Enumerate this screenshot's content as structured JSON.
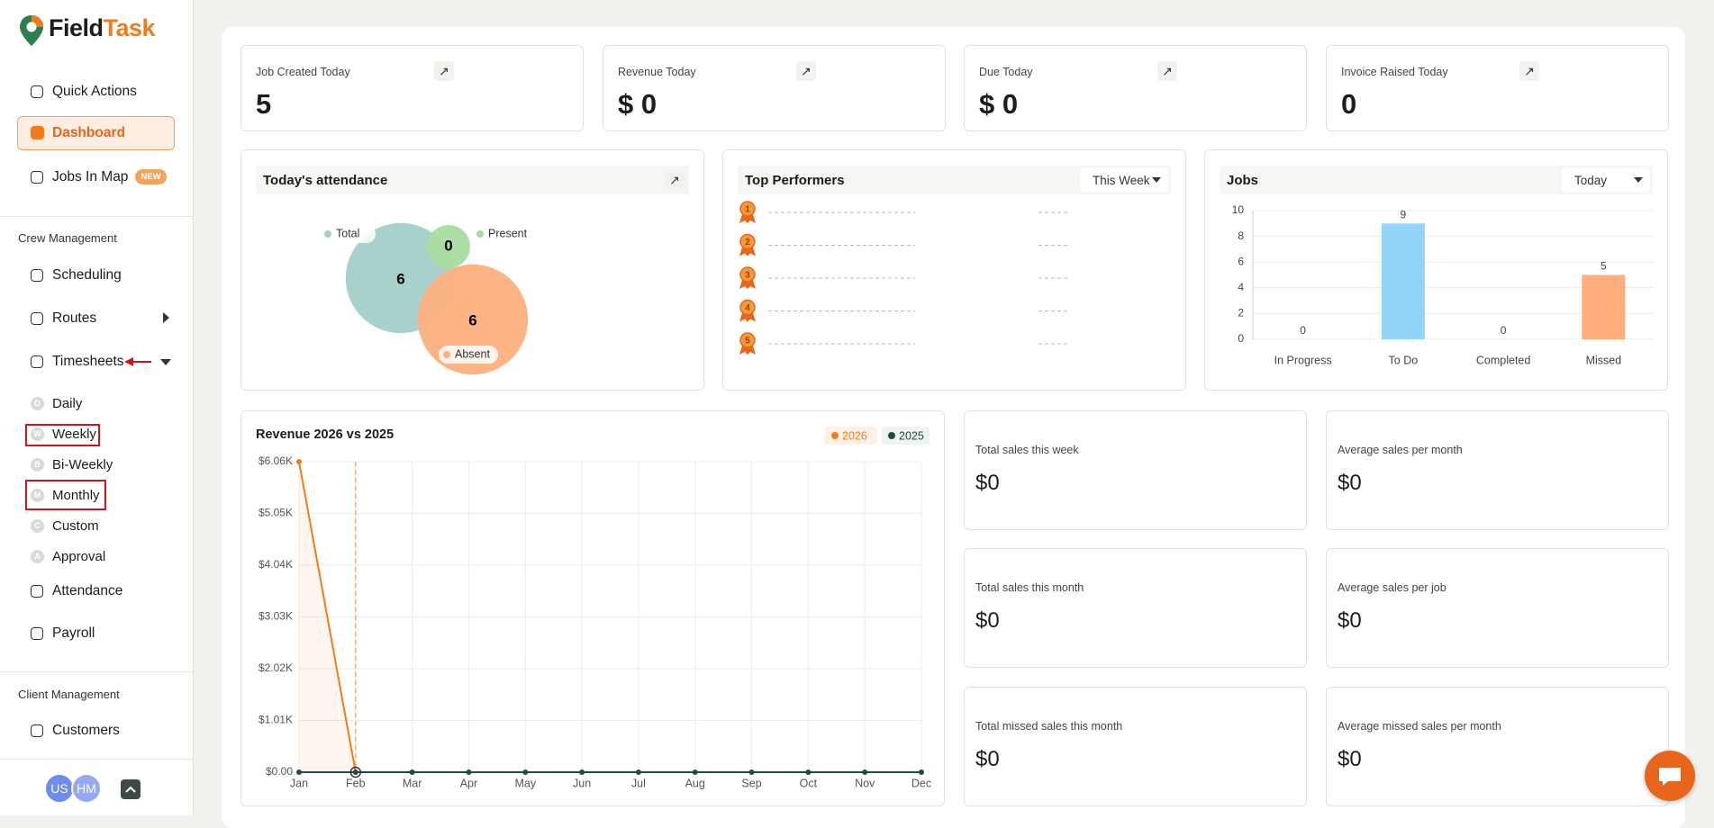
{
  "logo": [
    "Field",
    "Task"
  ],
  "sidebar": {
    "nav": [
      {
        "label": "Quick Actions"
      },
      {
        "label": "Dashboard",
        "active": true
      },
      {
        "label": "Jobs In Map",
        "badge": "NEW"
      }
    ],
    "sections": [
      {
        "title": "Crew Management",
        "items": [
          {
            "label": "Scheduling"
          },
          {
            "label": "Routes",
            "expand": "right"
          },
          {
            "label": "Timesheets",
            "expand": "down",
            "children": [
              {
                "icon": "D",
                "label": "Daily"
              },
              {
                "icon": "W",
                "label": "Weekly"
              },
              {
                "icon": "B",
                "label": "Bi-Weekly"
              },
              {
                "icon": "M",
                "label": "Monthly"
              },
              {
                "icon": "C",
                "label": "Custom"
              },
              {
                "icon": "A",
                "label": "Approval"
              }
            ]
          },
          {
            "label": "Attendance"
          },
          {
            "label": "Payroll"
          }
        ]
      },
      {
        "title": "Client Management",
        "items": [
          {
            "label": "Customers"
          }
        ]
      }
    ],
    "avatars": [
      "US",
      "HM"
    ]
  },
  "stats": [
    {
      "label": "Job Created Today",
      "value": "5"
    },
    {
      "label": "Revenue Today",
      "value": "$ 0"
    },
    {
      "label": "Due Today",
      "value": "$ 0"
    },
    {
      "label": "Invoice Raised Today",
      "value": "0"
    }
  ],
  "top_performers": {
    "title": "Top Performers",
    "filter": "This Week",
    "ranks": [
      1,
      2,
      3,
      4,
      5
    ]
  },
  "chart_data": [
    {
      "type": "bubble",
      "title": "Today's attendance",
      "categories": [
        "Total",
        "Present",
        "Absent"
      ],
      "values": [
        6,
        0,
        6
      ],
      "colors": [
        "#a3cfc8",
        "#a8dca0",
        "#fdb07e"
      ]
    },
    {
      "type": "bar",
      "title": "Jobs",
      "filter": "Today",
      "categories": [
        "In Progress",
        "To Do",
        "Completed",
        "Missed"
      ],
      "values": [
        0,
        9,
        0,
        5
      ],
      "colors": [
        "#93d4fb",
        "#93d4fb",
        "#93d4fb",
        "#fdae7a"
      ],
      "ylim": [
        0,
        10
      ],
      "yticks": [
        0,
        2,
        4,
        6,
        8,
        10
      ],
      "grid": true
    },
    {
      "type": "line",
      "title": "Revenue 2026 vs 2025",
      "categories": [
        "Jan",
        "Feb",
        "Mar",
        "Apr",
        "May",
        "Jun",
        "Jul",
        "Aug",
        "Sep",
        "Oct",
        "Nov",
        "Dec"
      ],
      "series": [
        {
          "name": "2026",
          "color": "#f07c1b",
          "values": [
            6060,
            0,
            null,
            null,
            null,
            null,
            null,
            null,
            null,
            null,
            null,
            null
          ]
        },
        {
          "name": "2025",
          "color": "#1f4d45",
          "values": [
            0,
            0,
            0,
            0,
            0,
            0,
            0,
            0,
            0,
            0,
            0,
            0
          ]
        }
      ],
      "ylim": [
        0,
        6060
      ],
      "yticks": [
        {
          "value": 0,
          "label": "$0.00"
        },
        {
          "value": 1010,
          "label": "$1.01K"
        },
        {
          "value": 2020,
          "label": "$2.02K"
        },
        {
          "value": 3030,
          "label": "$3.03K"
        },
        {
          "value": 4040,
          "label": "$4.04K"
        },
        {
          "value": 5050,
          "label": "$5.05K"
        },
        {
          "value": 6060,
          "label": "$6.06K"
        }
      ],
      "grid": true
    }
  ],
  "sales": [
    {
      "label": "Total sales this week",
      "value": "$0"
    },
    {
      "label": "Average sales per month",
      "value": "$0"
    },
    {
      "label": "Total sales this month",
      "value": "$0"
    },
    {
      "label": "Average sales per job",
      "value": "$0"
    },
    {
      "label": "Total missed sales this month",
      "value": "$0"
    },
    {
      "label": "Average missed sales per month",
      "value": "$0"
    }
  ]
}
